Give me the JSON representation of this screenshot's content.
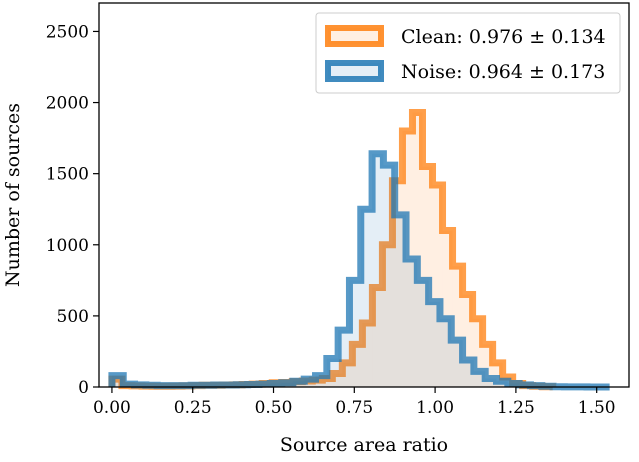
{
  "chart_data": {
    "type": "histogram",
    "xlabel": "Source area ratio",
    "ylabel": "Number of sources",
    "xlim": [
      -0.04,
      1.6
    ],
    "ylim": [
      0,
      2700
    ],
    "x_ticks": [
      0.0,
      0.25,
      0.5,
      0.75,
      1.0,
      1.25,
      1.5
    ],
    "x_tick_labels": [
      "0.00",
      "0.25",
      "0.50",
      "0.75",
      "1.00",
      "1.25",
      "1.50"
    ],
    "y_ticks": [
      0,
      500,
      1000,
      1500,
      2000,
      2500
    ],
    "y_tick_labels": [
      "0",
      "500",
      "1000",
      "1500",
      "2000",
      "2500"
    ],
    "grid": false,
    "legend_position": "top-right",
    "series": [
      {
        "name": "Clean",
        "legend_label": "Clean: 0.976 ± 0.134",
        "color": "#ff7f0e",
        "bin_edges": [
          0.0,
          0.031,
          0.062,
          0.093,
          0.124,
          0.155,
          0.186,
          0.217,
          0.248,
          0.279,
          0.31,
          0.341,
          0.372,
          0.403,
          0.434,
          0.465,
          0.496,
          0.527,
          0.558,
          0.589,
          0.62,
          0.651,
          0.682,
          0.713,
          0.744,
          0.775,
          0.806,
          0.837,
          0.868,
          0.899,
          0.93,
          0.961,
          0.992,
          1.023,
          1.054,
          1.085,
          1.116,
          1.147,
          1.178,
          1.209,
          1.24,
          1.271,
          1.302,
          1.333,
          1.364
        ],
        "counts": [
          55,
          10,
          8,
          6,
          5,
          5,
          6,
          8,
          10,
          12,
          12,
          14,
          15,
          18,
          20,
          25,
          30,
          32,
          38,
          42,
          48,
          60,
          95,
          170,
          300,
          450,
          700,
          1000,
          1450,
          1800,
          1930,
          1550,
          1420,
          1100,
          850,
          650,
          480,
          300,
          170,
          70,
          25,
          10,
          5,
          2
        ]
      },
      {
        "name": "Noise",
        "legend_label": "Noise: 0.964 ± 0.173",
        "color": "#1f77b4",
        "bin_edges": [
          0.0,
          0.035,
          0.07,
          0.105,
          0.14,
          0.175,
          0.21,
          0.245,
          0.28,
          0.315,
          0.35,
          0.385,
          0.42,
          0.455,
          0.49,
          0.525,
          0.56,
          0.595,
          0.63,
          0.665,
          0.7,
          0.735,
          0.77,
          0.805,
          0.84,
          0.875,
          0.91,
          0.945,
          0.98,
          1.015,
          1.05,
          1.085,
          1.12,
          1.155,
          1.19,
          1.225,
          1.26,
          1.295,
          1.33,
          1.365,
          1.4,
          1.435,
          1.47,
          1.505,
          1.54
        ],
        "counts": [
          80,
          20,
          15,
          12,
          10,
          10,
          10,
          12,
          12,
          14,
          14,
          16,
          18,
          20,
          25,
          30,
          40,
          55,
          80,
          200,
          400,
          750,
          1250,
          1640,
          1560,
          1210,
          900,
          750,
          600,
          480,
          330,
          190,
          110,
          60,
          40,
          25,
          15,
          10,
          5,
          2,
          1,
          1,
          0,
          0
        ]
      }
    ]
  }
}
